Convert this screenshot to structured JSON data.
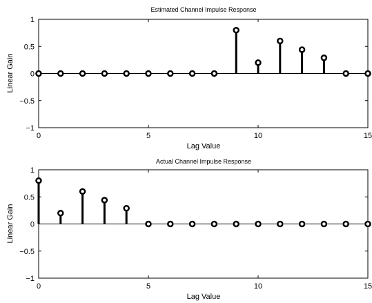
{
  "chart_data": [
    {
      "type": "stem",
      "title": "Estimated Channel Impulse Response",
      "xlabel": "Lag Value",
      "ylabel": "Linear Gain",
      "xlim": [
        0,
        15
      ],
      "ylim": [
        -1,
        1
      ],
      "xticks": [
        "0",
        "5",
        "10",
        "15"
      ],
      "yticks": [
        "1",
        "0.5",
        "0",
        "−0.5",
        "−1"
      ],
      "x": [
        0,
        1,
        2,
        3,
        4,
        5,
        6,
        7,
        8,
        9,
        10,
        11,
        12,
        13,
        14,
        15
      ],
      "y": [
        0,
        0,
        0,
        0,
        0,
        0,
        0,
        0,
        0,
        0.8,
        0.2,
        0.6,
        0.44,
        0.29,
        0,
        0
      ]
    },
    {
      "type": "stem",
      "title": "Actual Channel Impulse Response",
      "xlabel": "Lag Value",
      "ylabel": "Linear Gain",
      "xlim": [
        0,
        15
      ],
      "ylim": [
        -1,
        1
      ],
      "xticks": [
        "0",
        "5",
        "10",
        "15"
      ],
      "yticks": [
        "1",
        "0.5",
        "0",
        "−0.5",
        "−1"
      ],
      "x": [
        0,
        1,
        2,
        3,
        4,
        5,
        6,
        7,
        8,
        9,
        10,
        11,
        12,
        13,
        14,
        15
      ],
      "y": [
        0.8,
        0.2,
        0.6,
        0.44,
        0.29,
        0,
        0,
        0,
        0,
        0,
        0,
        0,
        0,
        0,
        0,
        0
      ]
    }
  ]
}
